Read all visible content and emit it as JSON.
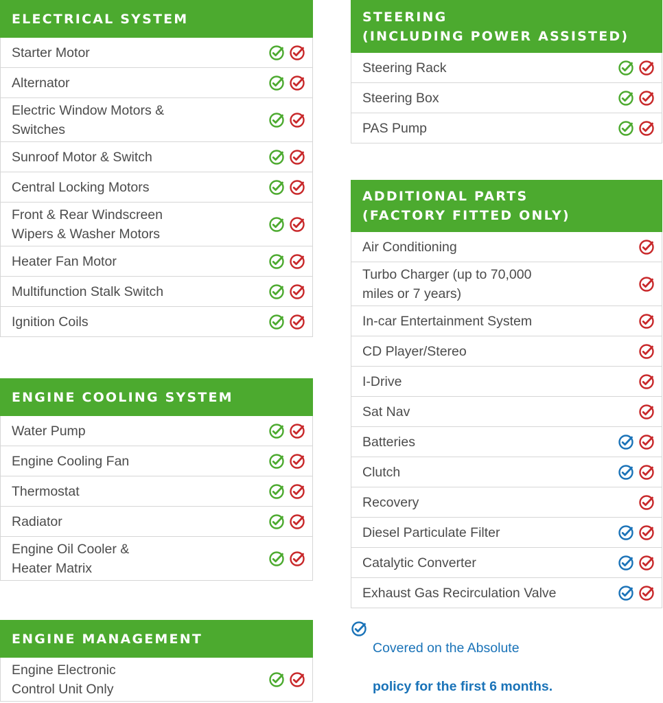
{
  "colors": {
    "green": "#4caa2f",
    "red": "#c8282a",
    "blue": "#1a73b8",
    "border": "#d6d6d6"
  },
  "icons": {
    "green": "green-check-circle-icon",
    "red": "red-check-circle-icon",
    "blue": "blue-check-circle-icon"
  },
  "sections": {
    "electrical": {
      "title": "ELECTRICAL SYSTEM",
      "rows": [
        {
          "label": "Starter Motor",
          "icons": [
            "green",
            "red"
          ]
        },
        {
          "label": "Alternator",
          "icons": [
            "green",
            "red"
          ]
        },
        {
          "label": "Electric Window Motors &\nSwitches",
          "icons": [
            "green",
            "red"
          ]
        },
        {
          "label": "Sunroof Motor & Switch",
          "icons": [
            "green",
            "red"
          ]
        },
        {
          "label": "Central Locking Motors",
          "icons": [
            "green",
            "red"
          ]
        },
        {
          "label": "Front & Rear Windscreen\nWipers & Washer Motors",
          "icons": [
            "green",
            "red"
          ]
        },
        {
          "label": "Heater Fan Motor",
          "icons": [
            "green",
            "red"
          ]
        },
        {
          "label": "Multifunction Stalk Switch",
          "icons": [
            "green",
            "red"
          ]
        },
        {
          "label": "Ignition Coils",
          "icons": [
            "green",
            "red"
          ]
        }
      ]
    },
    "cooling": {
      "title": "ENGINE COOLING SYSTEM",
      "rows": [
        {
          "label": "Water Pump",
          "icons": [
            "green",
            "red"
          ]
        },
        {
          "label": "Engine Cooling Fan",
          "icons": [
            "green",
            "red"
          ]
        },
        {
          "label": "Thermostat",
          "icons": [
            "green",
            "red"
          ]
        },
        {
          "label": "Radiator",
          "icons": [
            "green",
            "red"
          ]
        },
        {
          "label": "Engine Oil Cooler &\nHeater Matrix",
          "icons": [
            "green",
            "red"
          ]
        }
      ]
    },
    "management": {
      "title": "ENGINE MANAGEMENT",
      "rows": [
        {
          "label": "Engine Electronic\nControl Unit Only",
          "icons": [
            "green",
            "red"
          ]
        }
      ]
    },
    "steering": {
      "title": "STEERING\n(INCLUDING POWER ASSISTED)",
      "rows": [
        {
          "label": "Steering Rack",
          "icons": [
            "green",
            "red"
          ]
        },
        {
          "label": "Steering Box",
          "icons": [
            "green",
            "red"
          ]
        },
        {
          "label": "PAS Pump",
          "icons": [
            "green",
            "red"
          ]
        }
      ]
    },
    "additional": {
      "title": "ADDITIONAL PARTS\n(FACTORY FITTED ONLY)",
      "rows": [
        {
          "label": "Air Conditioning",
          "icons": [
            "none",
            "red"
          ]
        },
        {
          "label": "Turbo Charger (up to 70,000\nmiles or 7 years)",
          "icons": [
            "none",
            "red"
          ]
        },
        {
          "label": "In-car Entertainment System",
          "icons": [
            "none",
            "red"
          ]
        },
        {
          "label": "CD Player/Stereo",
          "icons": [
            "none",
            "red"
          ]
        },
        {
          "label": "I-Drive",
          "icons": [
            "none",
            "red"
          ]
        },
        {
          "label": "Sat Nav",
          "icons": [
            "none",
            "red"
          ]
        },
        {
          "label": "Batteries",
          "icons": [
            "blue",
            "red"
          ]
        },
        {
          "label": "Clutch",
          "icons": [
            "blue",
            "red"
          ]
        },
        {
          "label": "Recovery",
          "icons": [
            "none",
            "red"
          ]
        },
        {
          "label": "Diesel Particulate Filter",
          "icons": [
            "blue",
            "red"
          ]
        },
        {
          "label": "Catalytic Converter",
          "icons": [
            "blue",
            "red"
          ]
        },
        {
          "label": "Exhaust Gas Recirculation Valve",
          "icons": [
            "blue",
            "red"
          ]
        }
      ]
    }
  },
  "note": {
    "line1": "Covered on the Absolute",
    "line2": "policy for the first 6 months."
  }
}
